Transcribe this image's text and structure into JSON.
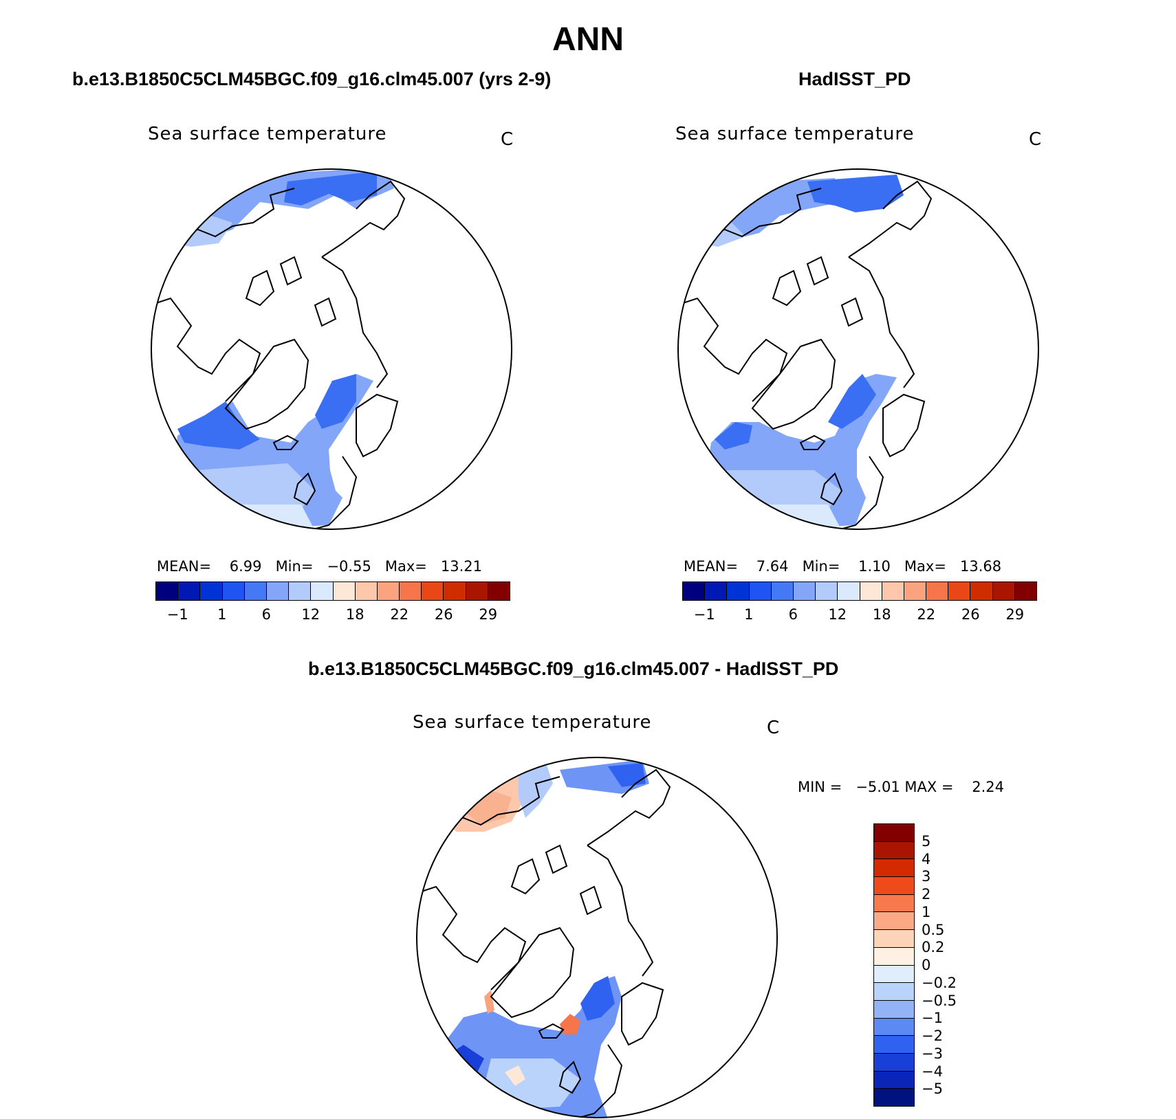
{
  "figure": {
    "title": "ANN"
  },
  "panels": [
    {
      "case_title": "b.e13.B1850C5CLM45BGC.f09_g16.clm45.007 (yrs 2-9)",
      "variable": "Sea surface temperature",
      "units": "C",
      "stats": {
        "mean_label": "MEAN=",
        "mean": "6.99",
        "min_label": "Min=",
        "min": "−0.55",
        "max_label": "Max=",
        "max": "13.21"
      }
    },
    {
      "case_title": "HadISST_PD",
      "variable": "Sea surface temperature",
      "units": "C",
      "stats": {
        "mean_label": "MEAN=",
        "mean": "7.64",
        "min_label": "Min=",
        "min": "1.10",
        "max_label": "Max=",
        "max": "13.68"
      }
    },
    {
      "case_title": "b.e13.B1850C5CLM45BGC.f09_g16.clm45.007 - HadISST_PD",
      "variable": "Sea surface temperature",
      "units": "C",
      "stats": {
        "min_label": "MIN =",
        "min": "−5.01",
        "max_label": "MAX =",
        "max": "2.24"
      }
    }
  ],
  "colorbars": {
    "abs_colors": [
      "#00007f",
      "#0019b3",
      "#0033d6",
      "#1f53f2",
      "#4478f5",
      "#83a6f8",
      "#b2cbfa",
      "#dbe9fc",
      "#fde8d8",
      "#fcc7ab",
      "#fba27f",
      "#f6754a",
      "#ea4716",
      "#cf2c00",
      "#aa1500",
      "#820000"
    ],
    "abs_ticks": [
      "−1",
      "1",
      "6",
      "12",
      "18",
      "22",
      "26",
      "29"
    ],
    "diff_colors": [
      "#820000",
      "#aa1500",
      "#d42a00",
      "#ee4a1a",
      "#f8794b",
      "#fba984",
      "#fdd4b8",
      "#fef0e2",
      "#e0edfc",
      "#bad3fa",
      "#93b3f7",
      "#5b8af5",
      "#2f62f0",
      "#1840d9",
      "#0a25b8",
      "#00127f"
    ],
    "diff_ticks": [
      "5",
      "4",
      "3",
      "2",
      "1",
      "0.5",
      "0.2",
      "0",
      "−0.2",
      "−0.5",
      "−1",
      "−2",
      "−3",
      "−4",
      "−5"
    ]
  },
  "chart_data": [
    {
      "type": "map",
      "title": "b.e13.B1850C5CLM45BGC.f09_g16.clm45.007 (yrs 2-9)",
      "variable": "Sea surface temperature",
      "units": "C",
      "projection": "north polar stereographic",
      "stats": {
        "mean": 6.99,
        "min": -0.55,
        "max": 13.21
      },
      "contour_levels": [
        -1,
        1,
        6,
        12,
        18,
        22,
        26,
        29
      ]
    },
    {
      "type": "map",
      "title": "HadISST_PD",
      "variable": "Sea surface temperature",
      "units": "C",
      "projection": "north polar stereographic",
      "stats": {
        "mean": 7.64,
        "min": 1.1,
        "max": 13.68
      },
      "contour_levels": [
        -1,
        1,
        6,
        12,
        18,
        22,
        26,
        29
      ]
    },
    {
      "type": "map",
      "title": "b.e13.B1850C5CLM45BGC.f09_g16.clm45.007 - HadISST_PD",
      "variable": "Sea surface temperature",
      "units": "C",
      "projection": "north polar stereographic",
      "stats": {
        "min": -5.01,
        "max": 2.24
      },
      "contour_levels": [
        5,
        4,
        3,
        2,
        1,
        0.5,
        0.2,
        0,
        -0.2,
        -0.5,
        -1,
        -2,
        -3,
        -4,
        -5
      ]
    }
  ]
}
